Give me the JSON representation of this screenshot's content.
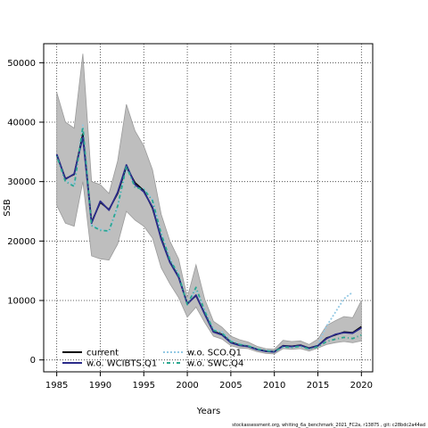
{
  "chart_data": {
    "type": "line",
    "xlabel": "Years",
    "ylabel": "SSB",
    "xlim": [
      1983.5,
      2021.3
    ],
    "ylim": [
      -2000,
      53200
    ],
    "x_ticks": [
      1985,
      1990,
      1995,
      2000,
      2005,
      2010,
      2015,
      2020
    ],
    "y_ticks": [
      0,
      10000,
      20000,
      30000,
      40000,
      50000
    ],
    "x_tick_labels": [
      "1985",
      "1990",
      "1995",
      "2000",
      "2005",
      "2010",
      "2015",
      "2020"
    ],
    "y_tick_labels": [
      "0",
      "10000",
      "20000",
      "30000",
      "40000",
      "50000"
    ],
    "grid": true,
    "legend_position": "bottom-left",
    "footer": "stockassessment.org,  whiting_6a_benchmark_2021_FC2a, r13875 ,  git: c28bdc2a44ad",
    "band": {
      "color": "#bebebe",
      "x": [
        1985,
        1986,
        1987,
        1988,
        1989,
        1990,
        1991,
        1992,
        1993,
        1994,
        1995,
        1996,
        1997,
        1998,
        1999,
        2000,
        2001,
        2002,
        2003,
        2004,
        2005,
        2006,
        2007,
        2008,
        2009,
        2010,
        2011,
        2012,
        2013,
        2014,
        2015,
        2016,
        2017,
        2018,
        2019,
        2020
      ],
      "upper": [
        45000,
        40000,
        39000,
        51500,
        30000,
        29500,
        28000,
        33500,
        43000,
        38500,
        36000,
        32000,
        24500,
        20000,
        17000,
        10500,
        16000,
        10200,
        6500,
        5500,
        4000,
        3400,
        3000,
        2300,
        1900,
        1800,
        3300,
        3100,
        3200,
        2600,
        3500,
        5800,
        6600,
        7300,
        7100,
        10000
      ],
      "lower": [
        26000,
        23000,
        22500,
        30000,
        17500,
        17000,
        16800,
        19500,
        25000,
        23500,
        22500,
        20500,
        15500,
        12800,
        10500,
        7200,
        8900,
        6300,
        4000,
        3500,
        2400,
        2000,
        1900,
        1400,
        1100,
        1000,
        1900,
        1800,
        1900,
        1500,
        2000,
        2600,
        2900,
        3100,
        2900,
        3200
      ]
    },
    "series": [
      {
        "name": "current",
        "color": "#000000",
        "dash": "solid",
        "x": [
          1985,
          1986,
          1987,
          1988,
          1989,
          1990,
          1991,
          1992,
          1993,
          1994,
          1995,
          1996,
          1997,
          1998,
          1999,
          2000,
          2001,
          2002,
          2003,
          2004,
          2005,
          2006,
          2007,
          2008,
          2009,
          2010,
          2011,
          2012,
          2013,
          2014,
          2015,
          2016,
          2017,
          2018,
          2019,
          2020
        ],
        "values": [
          34500,
          30500,
          31200,
          38000,
          23200,
          26500,
          25300,
          28000,
          32500,
          29800,
          28500,
          25500,
          20500,
          16500,
          14000,
          9500,
          10800,
          7800,
          4800,
          4300,
          3000,
          2500,
          2300,
          1800,
          1500,
          1400,
          2400,
          2300,
          2500,
          2000,
          2400,
          3700,
          4200,
          4700,
          4600,
          5600
        ]
      },
      {
        "name": "w.o. WCIBTS.Q1",
        "color": "#2b2b8a",
        "dash": "solid",
        "x": [
          1985,
          1986,
          1987,
          1988,
          1989,
          1990,
          1991,
          1992,
          1993,
          1994,
          1995,
          1996,
          1997,
          1998,
          1999,
          2000,
          2001,
          2002,
          2003,
          2004,
          2005,
          2006,
          2007,
          2008,
          2009,
          2010,
          2011,
          2012,
          2013,
          2014,
          2015,
          2016,
          2017,
          2018,
          2019,
          2020
        ],
        "values": [
          34600,
          30400,
          31300,
          37500,
          23000,
          26700,
          25200,
          28200,
          32800,
          29500,
          28300,
          25700,
          20300,
          16400,
          13900,
          9400,
          10900,
          7700,
          4700,
          4200,
          2900,
          2450,
          2250,
          1750,
          1450,
          1350,
          2350,
          2250,
          2450,
          1950,
          2350,
          3600,
          4300,
          4600,
          4500,
          5400
        ]
      },
      {
        "name": "w.o. SCO.Q1",
        "color": "#93c9e4",
        "dash": "dotted",
        "x": [
          1985,
          1986,
          1987,
          1988,
          1989,
          1990,
          1991,
          1992,
          1993,
          1994,
          1995,
          1996,
          1997,
          1998,
          1999,
          2000,
          2001,
          2002,
          2003,
          2004,
          2005,
          2006,
          2007,
          2008,
          2009,
          2010,
          2011,
          2012,
          2013,
          2014,
          2015,
          2016,
          2017,
          2018,
          2019
        ],
        "values": [
          34400,
          30200,
          29400,
          39500,
          22700,
          22000,
          21500,
          25800,
          32300,
          29300,
          28800,
          27000,
          21500,
          17000,
          14500,
          9400,
          12000,
          8400,
          5200,
          4700,
          3300,
          2700,
          2400,
          1900,
          1600,
          1450,
          2200,
          2100,
          2300,
          1900,
          2600,
          5700,
          8000,
          10300,
          11400
        ]
      },
      {
        "name": "w.o. SWC.Q4",
        "color": "#2aa68f",
        "dash": "dotdash",
        "x": [
          1985,
          1986,
          1987,
          1988,
          1989,
          1990,
          1991,
          1992,
          1993,
          1994,
          1995,
          1996,
          1997,
          1998,
          1999,
          2000,
          2001,
          2002,
          2003,
          2004,
          2005,
          2006,
          2007,
          2008,
          2009,
          2010,
          2011,
          2012,
          2013,
          2014,
          2015,
          2016,
          2017,
          2018,
          2019,
          2020
        ],
        "values": [
          34300,
          30000,
          29200,
          39200,
          22600,
          21800,
          21700,
          25900,
          32600,
          29000,
          28700,
          26800,
          21200,
          16900,
          14300,
          9300,
          12200,
          8200,
          5000,
          4500,
          3100,
          2600,
          2350,
          1850,
          1550,
          1400,
          2200,
          2100,
          2300,
          1850,
          2200,
          3100,
          3500,
          3800,
          3600,
          4200
        ]
      }
    ],
    "legend": [
      {
        "label": "current",
        "color": "#000000",
        "dash": "solid"
      },
      {
        "label": "w.o. WCIBTS.Q1",
        "color": "#2b2b8a",
        "dash": "solid"
      },
      {
        "label": "w.o. SCO.Q1",
        "color": "#93c9e4",
        "dash": "dotted"
      },
      {
        "label": "w.o. SWC.Q4",
        "color": "#2aa68f",
        "dash": "dotdash"
      }
    ]
  }
}
